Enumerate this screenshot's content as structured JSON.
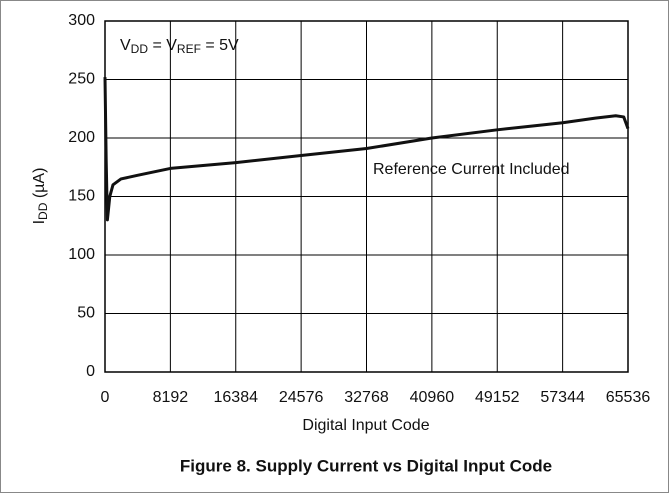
{
  "chart_data": {
    "type": "line",
    "caption": "Figure 8. Supply Current vs Digital Input Code",
    "x_label": "Digital Input Code",
    "y_label_parts": [
      "I",
      "DD",
      " (µA)"
    ],
    "annotation_parts": [
      "V",
      "DD",
      " = V",
      "REF",
      " = 5V"
    ],
    "annotation2": "Reference Current Included",
    "xlim": [
      0,
      65536
    ],
    "xticks": [
      0,
      8192,
      16384,
      24576,
      32768,
      40960,
      49152,
      57344,
      65536
    ],
    "ylim": [
      0,
      300
    ],
    "yticks": [
      0,
      50,
      100,
      150,
      200,
      250,
      300
    ],
    "grid": true,
    "series": [
      {
        "color": "#111111",
        "x": [
          0,
          150,
          300,
          450,
          600,
          1000,
          2000,
          4000,
          8192,
          16384,
          24576,
          32768,
          40960,
          49152,
          57344,
          61440,
          64000,
          65000,
          65536
        ],
        "values": [
          252,
          180,
          130,
          140,
          150,
          160,
          165,
          168,
          174,
          179,
          185,
          191,
          200,
          207,
          213,
          217,
          219,
          218,
          208
        ]
      }
    ]
  }
}
